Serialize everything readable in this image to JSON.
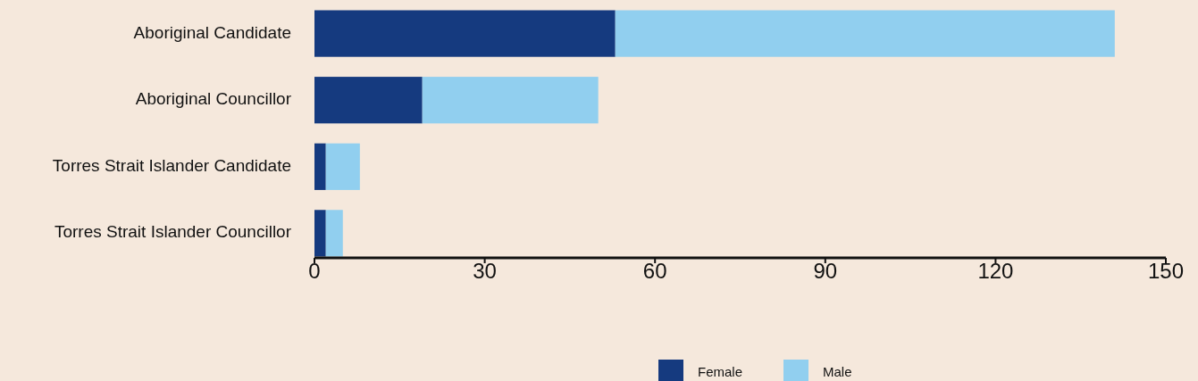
{
  "chart_data": {
    "type": "bar",
    "orientation": "horizontal",
    "stacked": true,
    "categories": [
      "Aboriginal Candidate",
      "Aboriginal Councillor",
      "Torres Strait Islander Candidate",
      "Torres Strait Islander Councillor"
    ],
    "series": [
      {
        "name": "Female",
        "color": "#153a7f",
        "values": [
          53,
          19,
          2,
          2
        ]
      },
      {
        "name": "Male",
        "color": "#91cfef",
        "values": [
          88,
          31,
          6,
          3
        ]
      }
    ],
    "xlim": [
      0,
      150
    ],
    "xticks": [
      0,
      30,
      60,
      90,
      120,
      150
    ],
    "grid": false,
    "legend": "bottom"
  }
}
